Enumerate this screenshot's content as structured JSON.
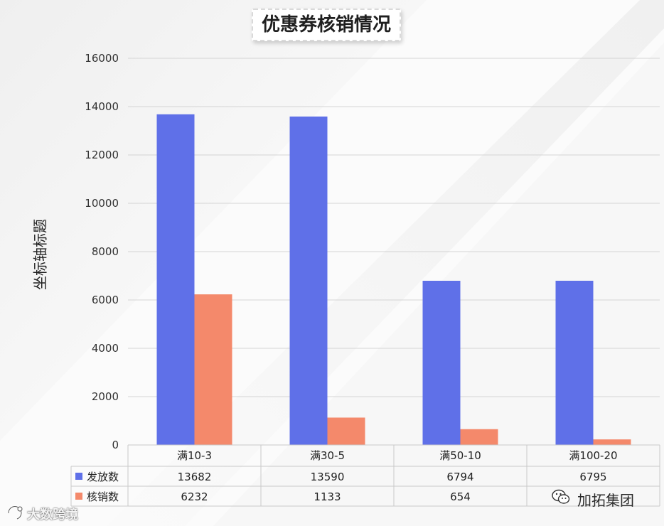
{
  "chart_data": {
    "type": "bar",
    "title": "优惠券核销情况",
    "ylabel": "坐标轴标题",
    "xlabel": "",
    "categories": [
      "满10-3",
      "满30-5",
      "满50-10",
      "满100-20"
    ],
    "series": [
      {
        "name": "发放数",
        "values": [
          13682,
          13590,
          6794,
          6795
        ],
        "color": "#5f70e8"
      },
      {
        "name": "核销数",
        "values": [
          6232,
          1133,
          654,
          230
        ],
        "color": "#f4896b"
      }
    ],
    "ylim": [
      0,
      16000
    ],
    "yticks": [
      0,
      2000,
      4000,
      6000,
      8000,
      10000,
      12000,
      14000,
      16000
    ],
    "grid": true,
    "legend": "data-table",
    "data_table": [
      [
        "13682",
        "13590",
        "6794",
        "6795"
      ],
      [
        "6232",
        "1133",
        "654",
        ""
      ]
    ]
  },
  "watermarks": {
    "left": "大数跨境",
    "right": "加拓集团"
  }
}
